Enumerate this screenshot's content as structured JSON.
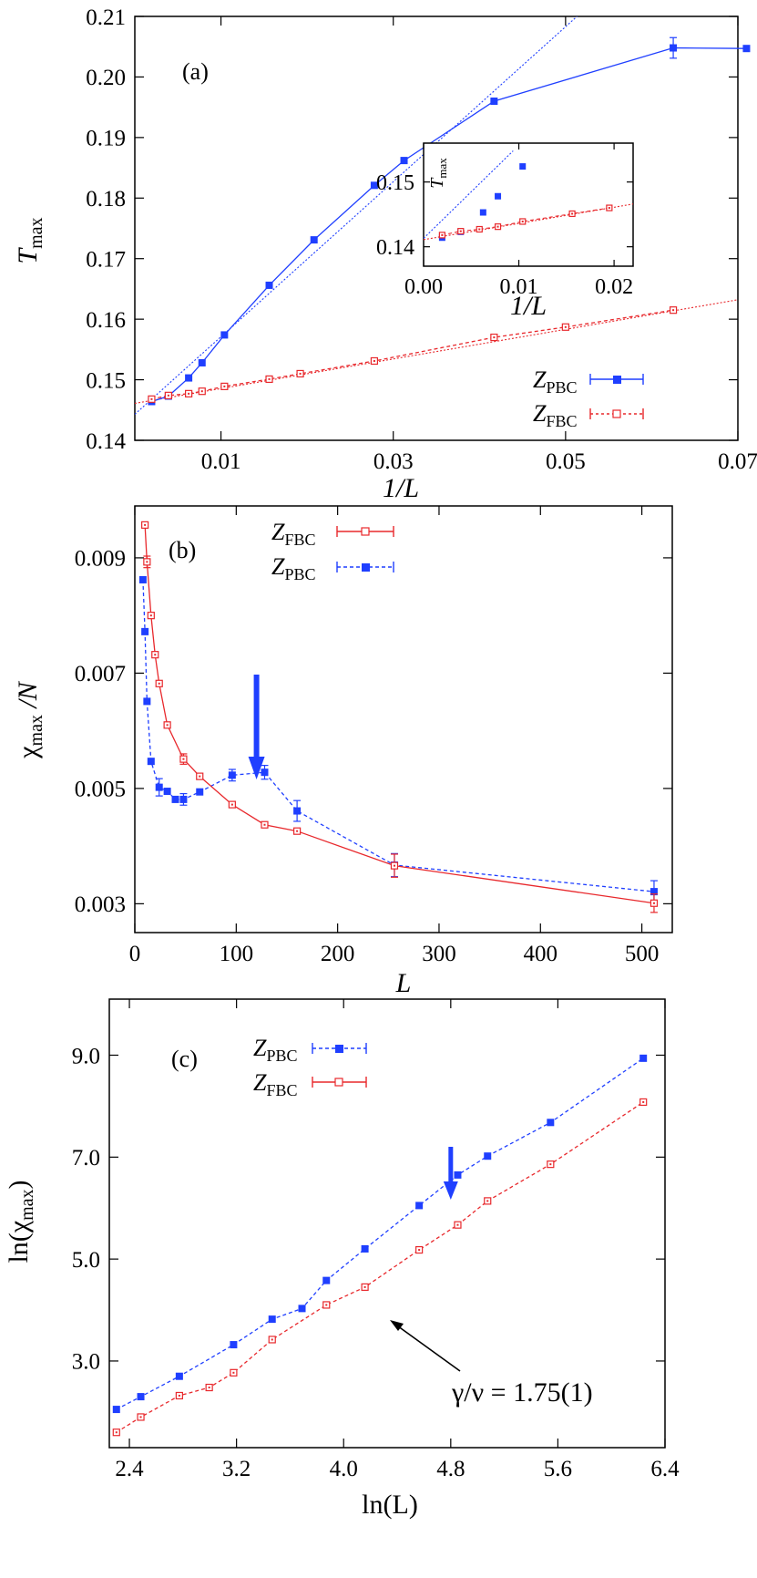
{
  "colors": {
    "pbc": "#1f3fff",
    "fbc": "#e8282c",
    "axis": "#000000",
    "arrow": "#1f3fff",
    "fit": "#3355dd"
  },
  "chart_data": [
    {
      "id": "a",
      "type": "scatter",
      "panel_label": "(a)",
      "xlabel": "1/L",
      "ylabel_main": "T",
      "ylabel_sub": "max",
      "xlim": [
        0.0,
        0.07
      ],
      "ylim": [
        0.14,
        0.21
      ],
      "x_ticks": [
        0.01,
        0.03,
        0.05,
        0.07
      ],
      "x_tick_labels": [
        "0.01",
        "0.03",
        "0.05",
        "0.07"
      ],
      "y_ticks": [
        0.14,
        0.15,
        0.16,
        0.17,
        0.18,
        0.19,
        0.2,
        0.21
      ],
      "y_tick_labels": [
        "0.14",
        "0.15",
        "0.16",
        "0.17",
        "0.18",
        "0.19",
        "0.20",
        "0.21"
      ],
      "legend_position": "bottom-right",
      "series": [
        {
          "name_main": "Z",
          "name_sub": "PBC",
          "color": "pbc",
          "marker": "filled-square",
          "line": "solid",
          "x": [
            0.00195,
            0.0039,
            0.00625,
            0.0078,
            0.0104,
            0.0156,
            0.0208,
            0.0278,
            0.03125,
            0.0417,
            0.0625,
            0.071
          ],
          "y": [
            0.1464,
            0.1473,
            0.1503,
            0.1528,
            0.1574,
            0.1656,
            0.1731,
            0.1821,
            0.1862,
            0.196,
            0.2048,
            0.2047
          ],
          "err": [
            0,
            0,
            0,
            0,
            0,
            0,
            0,
            0,
            0,
            0,
            0.0017,
            0
          ]
        },
        {
          "name_main": "Z",
          "name_sub": "FBC",
          "color": "fbc",
          "marker": "open-square",
          "line": "dashed",
          "x": [
            0.00195,
            0.0039,
            0.00625,
            0.0078,
            0.0104,
            0.0156,
            0.0192,
            0.0278,
            0.0417,
            0.05,
            0.0625
          ],
          "y": [
            0.1468,
            0.1474,
            0.1477,
            0.1481,
            0.1489,
            0.1501,
            0.151,
            0.1531,
            0.157,
            0.1587,
            0.1615
          ],
          "err": [
            0,
            0,
            0,
            0,
            0,
            0,
            0,
            0,
            0,
            0,
            0
          ]
        }
      ],
      "fits": [
        {
          "color": "pbc",
          "x": [
            0.0,
            0.055
          ],
          "y": [
            0.1443,
            0.2147
          ]
        },
        {
          "color": "fbc",
          "x": [
            0.0,
            0.072
          ],
          "y": [
            0.1461,
            0.1637
          ]
        }
      ],
      "inset": {
        "xlabel": "1/L",
        "ylabel_main": "T",
        "ylabel_sub": "max",
        "xlim": [
          0.0,
          0.022
        ],
        "ylim": [
          0.137,
          0.156
        ],
        "x_ticks": [
          0.0,
          0.01,
          0.02
        ],
        "x_tick_labels": [
          "0.00",
          "0.01",
          "0.02"
        ],
        "y_ticks": [
          0.14,
          0.15
        ],
        "y_tick_labels": [
          "0.14",
          "0.15"
        ],
        "series": [
          {
            "color": "pbc",
            "marker": "filled-square",
            "x": [
              0.00195,
              0.0039,
              0.00625,
              0.0078,
              0.0104
            ],
            "y": [
              0.1414,
              0.1423,
              0.1453,
              0.1478,
              0.1524
            ]
          },
          {
            "color": "fbc",
            "marker": "open-square",
            "line": "dashed",
            "x": [
              0.00195,
              0.0039,
              0.00586,
              0.0078,
              0.0104,
              0.0156,
              0.0195
            ],
            "y": [
              0.1418,
              0.1424,
              0.1427,
              0.1431,
              0.1439,
              0.1451,
              0.146
            ]
          }
        ],
        "fits": [
          {
            "color": "pbc",
            "x": [
              0.0,
              0.0094
            ],
            "y": [
              0.1413,
              0.1548
            ]
          },
          {
            "color": "fbc",
            "x": [
              0.0,
              0.022
            ],
            "y": [
              0.1411,
              0.1466
            ]
          }
        ]
      }
    },
    {
      "id": "b",
      "type": "line",
      "panel_label": "(b)",
      "xlabel": "L",
      "ylabel_main": "χ",
      "ylabel_sub": "max",
      "ylabel_tail": " /N",
      "xlim": [
        0,
        530
      ],
      "ylim": [
        0.0025,
        0.0099
      ],
      "x_ticks": [
        0,
        100,
        200,
        300,
        400,
        500
      ],
      "x_tick_labels": [
        "0",
        "100",
        "200",
        "300",
        "400",
        "500"
      ],
      "y_ticks": [
        0.003,
        0.005,
        0.007,
        0.009
      ],
      "y_tick_labels": [
        "0.003",
        "0.005",
        "0.007",
        "0.009"
      ],
      "legend_position": "top-center",
      "arrow_at_L": 120,
      "series": [
        {
          "name_main": "Z",
          "name_sub": "FBC",
          "color": "fbc",
          "marker": "open-square",
          "line": "solid",
          "x": [
            10,
            12,
            16,
            20,
            24,
            32,
            48,
            64,
            96,
            128,
            160,
            256,
            512
          ],
          "y": [
            0.00957,
            0.00893,
            0.008,
            0.00732,
            0.00682,
            0.0061,
            0.00551,
            0.00521,
            0.00472,
            0.00437,
            0.00426,
            0.00366,
            0.00301
          ],
          "err": [
            0,
            0.0001,
            0,
            0,
            0,
            0,
            9e-05,
            0,
            0,
            0,
            0,
            0.0002,
            0.00016
          ]
        },
        {
          "name_main": "Z",
          "name_sub": "PBC",
          "color": "pbc",
          "marker": "filled-square",
          "line": "dashed",
          "x": [
            8,
            10,
            12,
            16,
            24,
            32,
            40,
            48,
            64,
            96,
            128,
            160,
            256,
            512
          ],
          "y": [
            0.00862,
            0.00772,
            0.00651,
            0.00547,
            0.00502,
            0.00495,
            0.00481,
            0.00481,
            0.00494,
            0.00523,
            0.00528,
            0.00461,
            0.00367,
            0.00321
          ],
          "err": [
            0,
            0,
            0,
            0,
            0.00015,
            0,
            0,
            0.0001,
            0,
            0.0001,
            0.00012,
            0.00018,
            0.0002,
            0.00019
          ]
        }
      ]
    },
    {
      "id": "c",
      "type": "line",
      "panel_label": "(c)",
      "xlabel": "ln(L)",
      "ylabel": "ln(χ",
      "ylabel_sub": "max",
      "ylabel_tail": ")",
      "xlim": [
        2.25,
        6.4
      ],
      "ylim": [
        1.3,
        10.1
      ],
      "x_ticks": [
        2.4,
        3.2,
        4.0,
        4.8,
        5.6,
        6.4
      ],
      "x_tick_labels": [
        "2.4",
        "3.2",
        "4.0",
        "4.8",
        "5.6",
        "6.4"
      ],
      "y_ticks": [
        3.0,
        5.0,
        7.0,
        9.0
      ],
      "y_tick_labels": [
        "3.0",
        "5.0",
        "7.0",
        "9.0"
      ],
      "legend_position": "top-left",
      "arrow_at_lnL": 4.8,
      "annotation": {
        "text": "γ/ν = 1.75(1)",
        "points_to_x": 4.17,
        "points_to_y": 4.45
      },
      "series": [
        {
          "name_main": "Z",
          "name_sub": "PBC",
          "color": "pbc",
          "marker": "filled-square",
          "line": "dashed",
          "x": [
            2.303,
            2.485,
            2.773,
            3.178,
            3.466,
            3.689,
            3.871,
            4.159,
            4.564,
            4.852,
            5.075,
            5.545,
            6.238
          ],
          "y": [
            2.05,
            2.3,
            2.7,
            3.32,
            3.82,
            4.03,
            4.58,
            5.2,
            6.05,
            6.65,
            7.02,
            7.68,
            8.94
          ]
        },
        {
          "name_main": "Z",
          "name_sub": "FBC",
          "color": "fbc",
          "marker": "open-square",
          "line": "dashed",
          "x": [
            2.303,
            2.485,
            2.773,
            2.996,
            3.178,
            3.466,
            3.871,
            4.159,
            4.564,
            4.852,
            5.075,
            5.545,
            6.238
          ],
          "y": [
            1.6,
            1.9,
            2.32,
            2.48,
            2.77,
            3.42,
            4.1,
            4.45,
            5.18,
            5.67,
            6.14,
            6.86,
            8.08
          ]
        }
      ]
    }
  ]
}
